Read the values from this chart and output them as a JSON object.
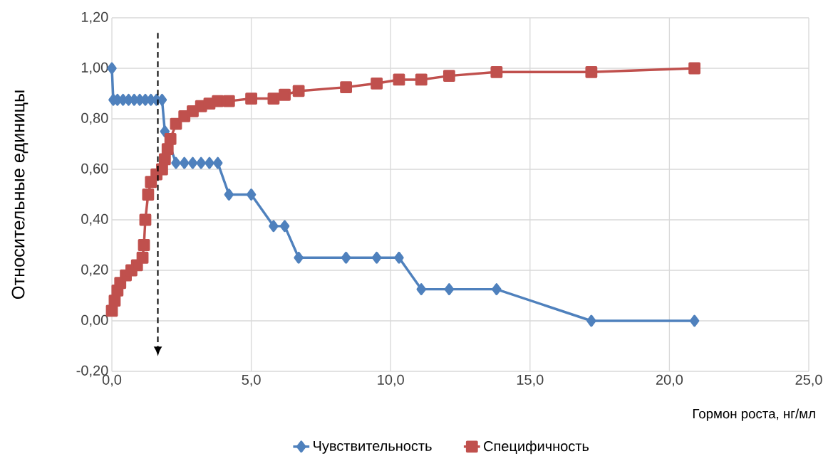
{
  "chart_data": {
    "type": "line",
    "xlabel": "Гормон роста, нг/мл",
    "ylabel": "Относительные единицы",
    "xlim": [
      0,
      25
    ],
    "ylim": [
      -0.2,
      1.2
    ],
    "xticks": [
      {
        "value": 0,
        "label": "0,0"
      },
      {
        "value": 5,
        "label": "5,0"
      },
      {
        "value": 10,
        "label": "10,0"
      },
      {
        "value": 15,
        "label": "15,0"
      },
      {
        "value": 20,
        "label": "20,0"
      },
      {
        "value": 25,
        "label": "25,0"
      }
    ],
    "yticks": [
      {
        "value": -0.2,
        "label": "-0,20"
      },
      {
        "value": 0,
        "label": "0,00"
      },
      {
        "value": 0.2,
        "label": "0,20"
      },
      {
        "value": 0.4,
        "label": "0,40"
      },
      {
        "value": 0.6,
        "label": "0,60"
      },
      {
        "value": 0.8,
        "label": "0,80"
      },
      {
        "value": 1.0,
        "label": "1,00"
      },
      {
        "value": 1.2,
        "label": "1,20"
      }
    ],
    "grid": true,
    "legend": "bottom",
    "series": [
      {
        "name": "Чувствительность",
        "color": "#4f81bd",
        "marker": "diamond",
        "x": [
          0,
          0.05,
          0.2,
          0.4,
          0.6,
          0.8,
          1.0,
          1.2,
          1.4,
          1.6,
          1.8,
          1.9,
          2.0,
          2.3,
          2.6,
          2.9,
          3.2,
          3.5,
          3.8,
          4.2,
          5.0,
          5.8,
          6.2,
          6.7,
          8.4,
          9.5,
          10.3,
          11.1,
          12.1,
          13.8,
          17.2,
          20.9
        ],
        "values": [
          1.0,
          0.875,
          0.875,
          0.875,
          0.875,
          0.875,
          0.875,
          0.875,
          0.875,
          0.875,
          0.875,
          0.75,
          null,
          0.625,
          0.625,
          0.625,
          0.625,
          0.625,
          0.625,
          0.5,
          0.5,
          0.375,
          0.375,
          0.25,
          0.25,
          0.25,
          0.25,
          0.125,
          0.125,
          0.125,
          0,
          0
        ]
      },
      {
        "name": "Специфичность",
        "color": "#c0504d",
        "marker": "square",
        "x": [
          0,
          0.1,
          0.2,
          0.3,
          0.5,
          0.7,
          0.9,
          1.1,
          1.15,
          1.2,
          1.3,
          1.4,
          1.6,
          1.8,
          1.9,
          2.0,
          2.1,
          2.3,
          2.6,
          2.9,
          3.2,
          3.5,
          3.8,
          4.2,
          5.0,
          5.8,
          6.2,
          6.7,
          8.4,
          9.5,
          10.3,
          11.1,
          12.1,
          13.8,
          17.2,
          20.9
        ],
        "values": [
          0.04,
          0.08,
          0.12,
          0.15,
          0.18,
          0.2,
          0.22,
          0.25,
          0.3,
          0.4,
          0.5,
          0.55,
          0.58,
          0.6,
          0.64,
          0.68,
          0.72,
          0.78,
          0.81,
          0.83,
          0.85,
          0.86,
          0.87,
          0.87,
          0.88,
          0.88,
          0.895,
          0.91,
          0.925,
          0.94,
          0.955,
          0.955,
          0.97,
          0.985,
          0.985,
          1.0
        ]
      }
    ],
    "ref_lines": [
      {
        "axis": "x",
        "value": 1.65,
        "color": "#000000",
        "line_style": "dashed"
      }
    ]
  }
}
